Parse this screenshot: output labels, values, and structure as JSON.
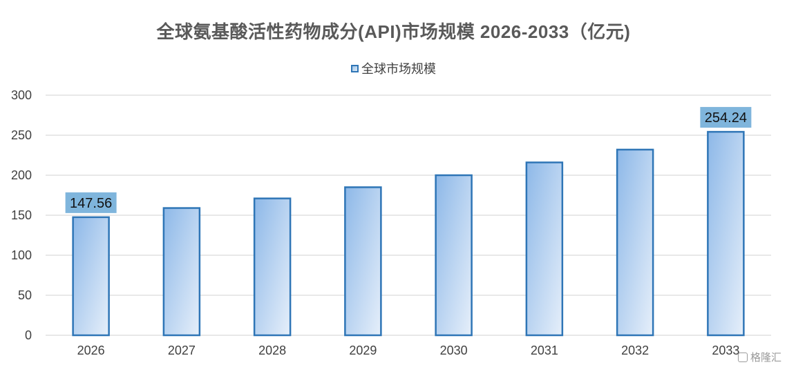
{
  "chart_data": {
    "type": "bar",
    "title": "全球氨基酸活性药物成分(API)市场规模 2026-2033（亿元)",
    "categories": [
      "2026",
      "2027",
      "2028",
      "2029",
      "2030",
      "2031",
      "2032",
      "2033"
    ],
    "series": [
      {
        "name": "全球市场规模",
        "values": [
          147.56,
          159,
          171,
          185,
          200,
          216,
          232,
          254.24
        ],
        "data_labels": [
          "147.56",
          "",
          "",
          "",
          "",
          "",
          "",
          "254.24"
        ]
      }
    ],
    "yticks": [
      "0",
      "50",
      "100",
      "150",
      "200",
      "250",
      "300"
    ],
    "ylim": [
      0,
      300
    ],
    "grid": true,
    "legend_position": "top"
  },
  "colors": {
    "bar_border": "#2e75b6",
    "bar_fill_dark": "#8db8e8",
    "bar_fill_light": "#e6effa",
    "label_bg": "#7fb5dc",
    "grid": "#d9d9d9",
    "text": "#404040"
  },
  "watermark": {
    "text": "格隆汇",
    "icon": "gelonghui-logo-icon"
  }
}
